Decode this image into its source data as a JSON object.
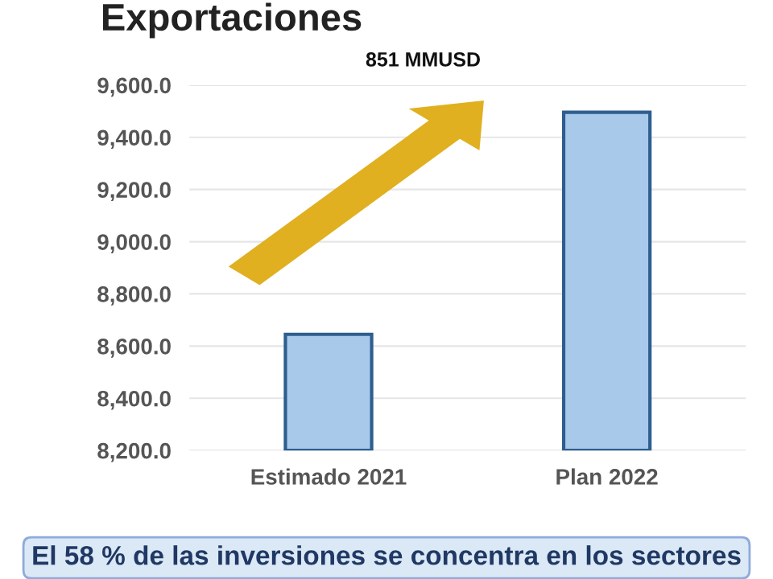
{
  "chart_data": {
    "type": "bar",
    "title": "Exportaciones",
    "categories": [
      "Estimado 2021",
      "Plan 2022"
    ],
    "values": [
      8645,
      9496
    ],
    "color": "#a9c9ea",
    "ylim": [
      8200,
      9600
    ],
    "yticks": [
      {
        "value": 8200,
        "label": "8,200.0"
      },
      {
        "value": 8400,
        "label": "8,400.0"
      },
      {
        "value": 8600,
        "label": "8,600.0"
      },
      {
        "value": 8800,
        "label": "8,800.0"
      },
      {
        "value": 9000,
        "label": "9,000.0"
      },
      {
        "value": 9200,
        "label": "9,200.0"
      },
      {
        "value": 9400,
        "label": "9,400.0"
      },
      {
        "value": 9600,
        "label": "9,600.0"
      }
    ],
    "grid": "y",
    "annotations": [
      "851 MMUSD",
      "El 58 % de las inversiones se concentra en los sectores"
    ]
  }
}
